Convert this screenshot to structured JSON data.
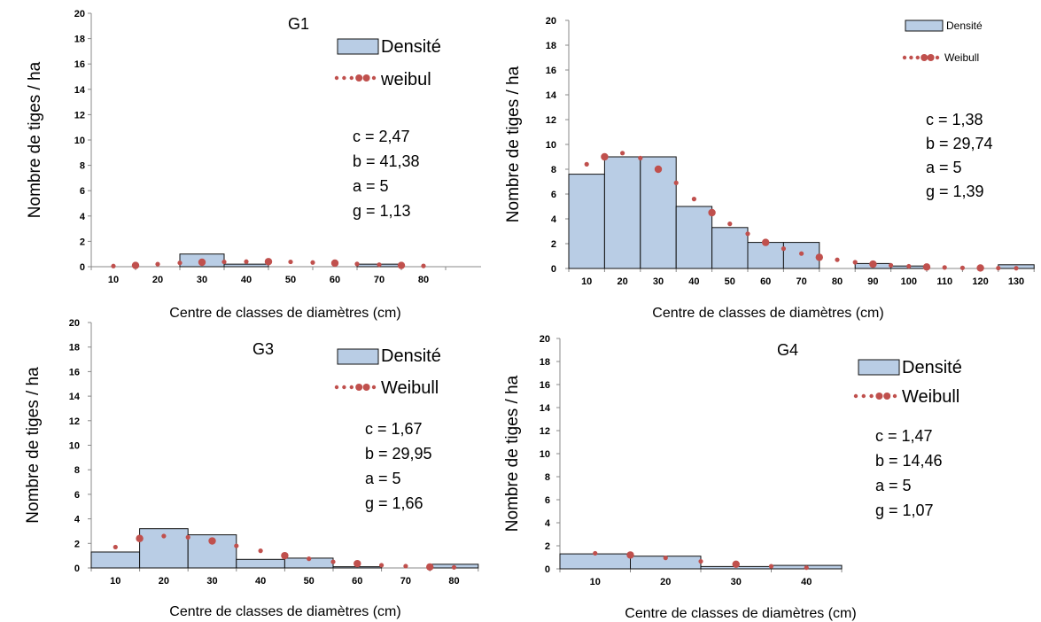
{
  "colors": {
    "bar_fill": "#b9cde5",
    "bar_stroke": "#111111",
    "dot": "#c0504d"
  },
  "chart_data": [
    {
      "type": "bar",
      "title": "G1",
      "ylabel": "Nombre de tiges / ha",
      "xlabel": "Centre de classes de diamètres (cm)",
      "ylim": [
        0,
        20
      ],
      "yticks": [
        "0",
        "2",
        "4",
        "6",
        "8",
        "10",
        "12",
        "14",
        "16",
        "18",
        "20"
      ],
      "categories": [
        "10",
        "20",
        "30",
        "40",
        "50",
        "60",
        "70",
        "80"
      ],
      "series": [
        {
          "name": "Densité",
          "type": "bar",
          "values": [
            0,
            0,
            1.0,
            0.2,
            0,
            0,
            0.2,
            0
          ]
        },
        {
          "name": "weibul",
          "type": "line",
          "x": [
            10,
            15,
            20,
            25,
            30,
            35,
            40,
            45,
            50,
            55,
            60,
            65,
            70,
            75,
            80
          ],
          "values": [
            0.05,
            0.1,
            0.2,
            0.3,
            0.35,
            0.38,
            0.4,
            0.4,
            0.38,
            0.33,
            0.28,
            0.22,
            0.16,
            0.1,
            0.06
          ]
        }
      ],
      "params": [
        "c = 2,47",
        "b = 41,38",
        "a = 5",
        "g = 1,13"
      ],
      "legend": "top-right"
    },
    {
      "type": "bar",
      "title": "",
      "ylabel": "Nombre de tiges / ha",
      "xlabel": "Centre de classes de diamètres (cm)",
      "ylim": [
        0,
        20
      ],
      "yticks": [
        "0",
        "2",
        "4",
        "6",
        "8",
        "10",
        "12",
        "14",
        "16",
        "18",
        "20"
      ],
      "categories": [
        "10",
        "20",
        "30",
        "40",
        "50",
        "60",
        "70",
        "80",
        "90",
        "100",
        "110",
        "120",
        "130"
      ],
      "series": [
        {
          "name": "Densité",
          "type": "bar",
          "values": [
            7.6,
            9.0,
            9.0,
            5.0,
            3.3,
            2.1,
            2.1,
            0,
            0.4,
            0.2,
            0,
            0,
            0.3
          ]
        },
        {
          "name": "Weibull",
          "type": "line",
          "x": [
            10,
            15,
            20,
            25,
            30,
            35,
            40,
            45,
            50,
            55,
            60,
            65,
            70,
            75,
            80,
            85,
            90,
            95,
            100,
            105,
            110,
            115,
            120,
            125,
            130
          ],
          "values": [
            8.4,
            9.0,
            9.3,
            8.9,
            8.0,
            6.9,
            5.6,
            4.5,
            3.6,
            2.8,
            2.1,
            1.6,
            1.2,
            0.9,
            0.7,
            0.5,
            0.35,
            0.25,
            0.18,
            0.12,
            0.08,
            0.05,
            0.04,
            0.03,
            0.02
          ]
        }
      ],
      "params": [
        "c = 1,38",
        "b = 29,74",
        "a = 5",
        "g = 1,39"
      ],
      "legend": "top-right"
    },
    {
      "type": "bar",
      "title": "G3",
      "ylabel": "Nombre de tiges / ha",
      "xlabel": "Centre de classes de diamètres (cm)",
      "ylim": [
        0,
        20
      ],
      "yticks": [
        "0",
        "2",
        "4",
        "6",
        "8",
        "10",
        "12",
        "14",
        "16",
        "18",
        "20"
      ],
      "categories": [
        "10",
        "20",
        "30",
        "40",
        "50",
        "60",
        "70",
        "80"
      ],
      "series": [
        {
          "name": "Densité",
          "type": "bar",
          "values": [
            1.3,
            3.2,
            2.7,
            0.7,
            0.8,
            0.1,
            0,
            0.3
          ]
        },
        {
          "name": "Weibull",
          "type": "line",
          "x": [
            10,
            15,
            20,
            25,
            30,
            35,
            40,
            45,
            50,
            55,
            60,
            65,
            70,
            75,
            80
          ],
          "values": [
            1.7,
            2.4,
            2.6,
            2.5,
            2.2,
            1.8,
            1.4,
            1.0,
            0.75,
            0.5,
            0.35,
            0.22,
            0.15,
            0.08,
            0.05
          ]
        }
      ],
      "params": [
        "c = 1,67",
        "b = 29,95",
        "a = 5",
        "g = 1,66"
      ],
      "legend": "top-right"
    },
    {
      "type": "bar",
      "title": "G4",
      "ylabel": "Nombre de tiges / ha",
      "xlabel": "Centre de classes de diamètres (cm)",
      "ylim": [
        0,
        20
      ],
      "yticks": [
        "0",
        "2",
        "4",
        "6",
        "8",
        "10",
        "12",
        "14",
        "16",
        "18",
        "20"
      ],
      "categories": [
        "10",
        "20",
        "30",
        "40"
      ],
      "series": [
        {
          "name": "Densité",
          "type": "bar",
          "values": [
            1.3,
            1.1,
            0.2,
            0.3
          ]
        },
        {
          "name": "Weibull",
          "type": "line",
          "x": [
            10,
            15,
            20,
            25,
            30,
            35,
            40
          ],
          "values": [
            1.35,
            1.2,
            0.95,
            0.65,
            0.4,
            0.22,
            0.1
          ]
        }
      ],
      "params": [
        "c = 1,47",
        "b = 14,46",
        "a = 5",
        "g = 1,07"
      ],
      "legend": "top-right"
    }
  ]
}
